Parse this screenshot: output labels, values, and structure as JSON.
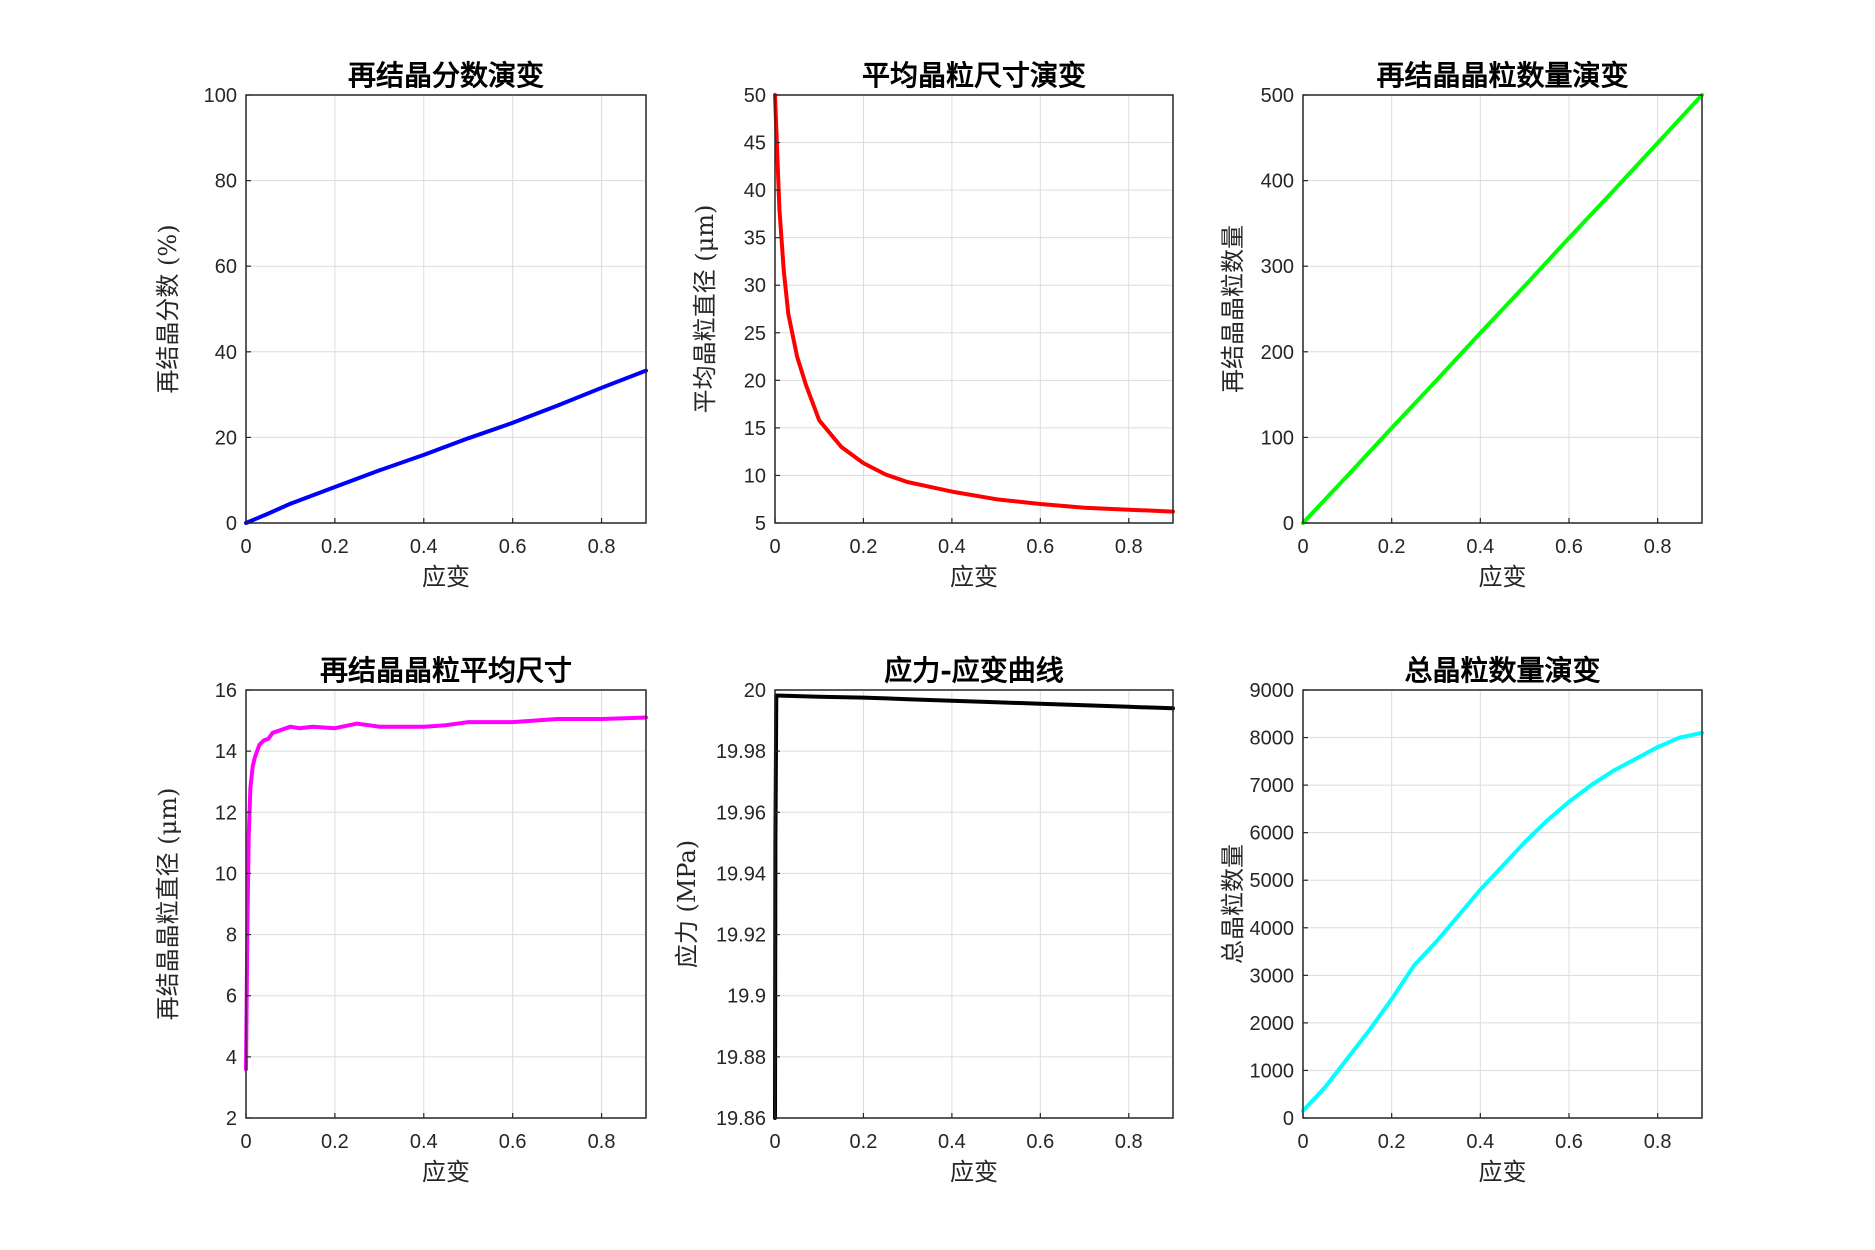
{
  "chart_data": [
    {
      "type": "line",
      "title": "再结晶分数演变",
      "xlabel": "应变",
      "ylabel": "再结晶分数 (%)",
      "xlim": [
        0,
        0.9
      ],
      "ylim": [
        0,
        100
      ],
      "xticks": [
        0,
        0.2,
        0.4,
        0.6,
        0.8
      ],
      "yticks": [
        0,
        20,
        40,
        60,
        80,
        100
      ],
      "grid": true,
      "color": "#0000ff",
      "series": [
        {
          "x": [
            0,
            0.05,
            0.1,
            0.2,
            0.3,
            0.4,
            0.5,
            0.6,
            0.7,
            0.8,
            0.9
          ],
          "y": [
            0,
            2.2,
            4.5,
            8.4,
            12.3,
            15.9,
            19.8,
            23.4,
            27.4,
            31.6,
            35.6
          ]
        }
      ]
    },
    {
      "type": "line",
      "title": "平均晶粒尺寸演变",
      "xlabel": "应变",
      "ylabel": "平均晶粒直径 (μm)",
      "xlim": [
        0,
        0.9
      ],
      "ylim": [
        5,
        50
      ],
      "xticks": [
        0,
        0.2,
        0.4,
        0.6,
        0.8
      ],
      "yticks": [
        5,
        10,
        15,
        20,
        25,
        30,
        35,
        40,
        45,
        50
      ],
      "grid": true,
      "color": "#ff0000",
      "series": [
        {
          "x": [
            0,
            0.005,
            0.01,
            0.02,
            0.03,
            0.05,
            0.07,
            0.1,
            0.15,
            0.2,
            0.25,
            0.3,
            0.4,
            0.5,
            0.6,
            0.7,
            0.8,
            0.9
          ],
          "y": [
            50,
            44,
            38,
            31.5,
            27,
            22.5,
            19.5,
            15.8,
            13,
            11.3,
            10.1,
            9.3,
            8.3,
            7.5,
            7.0,
            6.6,
            6.4,
            6.2
          ]
        }
      ]
    },
    {
      "type": "line",
      "title": "再结晶晶粒数量演变",
      "xlabel": "应变",
      "ylabel": "再结晶晶粒数量",
      "xlim": [
        0,
        0.9
      ],
      "ylim": [
        0,
        500
      ],
      "xticks": [
        0,
        0.2,
        0.4,
        0.6,
        0.8
      ],
      "yticks": [
        0,
        100,
        200,
        300,
        400,
        500
      ],
      "grid": true,
      "color": "#00ff00",
      "series": [
        {
          "x": [
            0,
            0.1,
            0.2,
            0.3,
            0.4,
            0.5,
            0.6,
            0.7,
            0.8,
            0.9
          ],
          "y": [
            0,
            55,
            111,
            166,
            222,
            277,
            333,
            388,
            444,
            500
          ]
        }
      ]
    },
    {
      "type": "line",
      "title": "再结晶晶粒平均尺寸",
      "xlabel": "应变",
      "ylabel": "再结晶晶粒直径 (μm)",
      "xlim": [
        0,
        0.9
      ],
      "ylim": [
        2,
        16
      ],
      "xticks": [
        0,
        0.2,
        0.4,
        0.6,
        0.8
      ],
      "yticks": [
        2,
        4,
        6,
        8,
        10,
        12,
        14,
        16
      ],
      "grid": true,
      "color": "#ff00ff",
      "series": [
        {
          "x": [
            0,
            0.003,
            0.006,
            0.01,
            0.015,
            0.02,
            0.03,
            0.04,
            0.05,
            0.06,
            0.07,
            0.08,
            0.1,
            0.12,
            0.15,
            0.2,
            0.25,
            0.3,
            0.35,
            0.4,
            0.45,
            0.5,
            0.6,
            0.7,
            0.8,
            0.9
          ],
          "y": [
            3.6,
            8.0,
            11.2,
            12.8,
            13.5,
            13.8,
            14.2,
            14.35,
            14.4,
            14.6,
            14.65,
            14.7,
            14.8,
            14.75,
            14.8,
            14.75,
            14.9,
            14.8,
            14.8,
            14.8,
            14.85,
            14.95,
            14.95,
            15.05,
            15.05,
            15.1
          ]
        }
      ]
    },
    {
      "type": "line",
      "title": "应力-应变曲线",
      "xlabel": "应变",
      "ylabel": "应力 (MPa)",
      "xlim": [
        0,
        0.9
      ],
      "ylim": [
        19.86,
        20
      ],
      "xticks": [
        0,
        0.2,
        0.4,
        0.6,
        0.8
      ],
      "yticks": [
        19.86,
        19.88,
        19.9,
        19.92,
        19.94,
        19.96,
        19.98,
        20
      ],
      "grid": true,
      "color": "#000000",
      "series": [
        {
          "x": [
            0,
            0.001,
            0.003,
            0.1,
            0.2,
            0.3,
            0.4,
            0.5,
            0.6,
            0.7,
            0.8,
            0.9
          ],
          "y": [
            19.86,
            19.95,
            19.9982,
            19.9978,
            19.9975,
            19.997,
            19.9965,
            19.996,
            19.9955,
            19.995,
            19.9945,
            19.994
          ]
        }
      ]
    },
    {
      "type": "line",
      "title": "总晶粒数量演变",
      "xlabel": "应变",
      "ylabel": "总晶粒数量",
      "xlim": [
        0,
        0.9
      ],
      "ylim": [
        0,
        9000
      ],
      "xticks": [
        0,
        0.2,
        0.4,
        0.6,
        0.8
      ],
      "yticks": [
        0,
        1000,
        2000,
        3000,
        4000,
        5000,
        6000,
        7000,
        8000,
        9000
      ],
      "grid": true,
      "color": "#00ffff",
      "series": [
        {
          "x": [
            0,
            0.05,
            0.1,
            0.15,
            0.2,
            0.25,
            0.3,
            0.35,
            0.4,
            0.45,
            0.5,
            0.55,
            0.6,
            0.65,
            0.7,
            0.75,
            0.8,
            0.85,
            0.9
          ],
          "y": [
            150,
            650,
            1250,
            1850,
            2500,
            3200,
            3700,
            4250,
            4800,
            5300,
            5800,
            6250,
            6650,
            7000,
            7300,
            7550,
            7800,
            8000,
            8100
          ]
        }
      ]
    }
  ]
}
